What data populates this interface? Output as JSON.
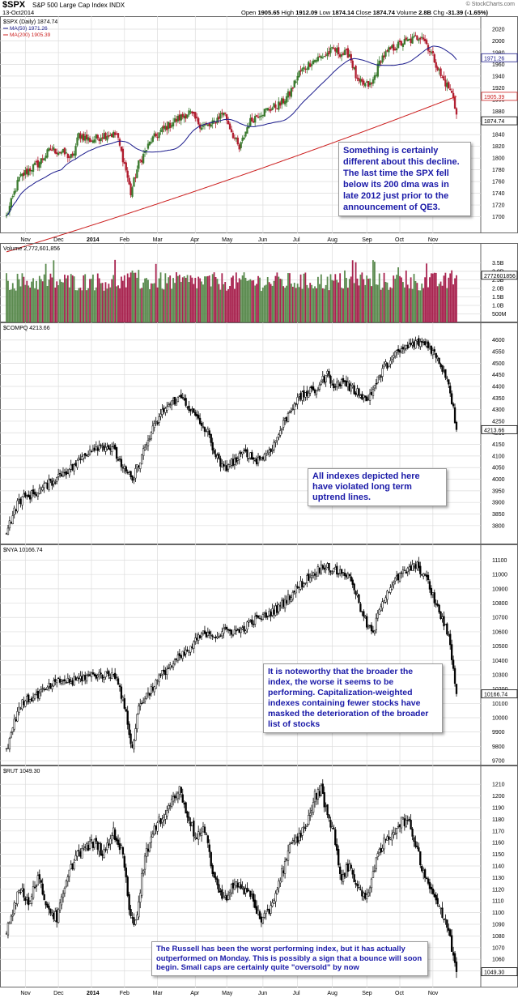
{
  "header": {
    "symbol": "$SPX",
    "name": "S&P 500 Large Cap Index INDX",
    "date": "13-Oct2014",
    "open_label": "Open",
    "open": "1905.65",
    "high_label": "High",
    "high": "1912.09",
    "low_label": "Low",
    "low": "1874.14",
    "close_label": "Close",
    "close": "1874.74",
    "vol_label": "Volume",
    "vol": "2.8B",
    "chg_label": "Chg",
    "chg": "-31.39 (-1.65%)",
    "source": "© StockCharts.com"
  },
  "colors": {
    "up": "#3a7a2e",
    "down": "#b01c2e",
    "ma50": "#1a1a8c",
    "ma200": "#cc1f1f",
    "grid": "#dcdcdc",
    "vol_up": "#5a8a4e",
    "vol_down": "#a8234f",
    "note_text": "#1a1aa8"
  },
  "chart_data": [
    {
      "type": "candlestick",
      "id": "spx",
      "title": "$SPX (Daily) 1874.74",
      "legend": [
        "MA(50) 1971.26",
        "MA(200) 1905.39"
      ],
      "ylim": [
        1680,
        2020
      ],
      "yticks": [
        1700,
        1720,
        1740,
        1760,
        1780,
        1800,
        1820,
        1840,
        1860,
        1880,
        1900,
        1920,
        1940,
        1960,
        1980,
        2000,
        2020
      ],
      "price_tags": [
        "1971.26",
        "1905.39",
        "1874.74"
      ],
      "anchors": [
        [
          0,
          1700
        ],
        [
          8,
          1765
        ],
        [
          14,
          1780
        ],
        [
          20,
          1790
        ],
        [
          28,
          1815
        ],
        [
          35,
          1810
        ],
        [
          42,
          1800
        ],
        [
          46,
          1840
        ],
        [
          54,
          1830
        ],
        [
          62,
          1840
        ],
        [
          70,
          1840
        ],
        [
          76,
          1780
        ],
        [
          79,
          1740
        ],
        [
          84,
          1790
        ],
        [
          92,
          1830
        ],
        [
          100,
          1850
        ],
        [
          108,
          1865
        ],
        [
          116,
          1878
        ],
        [
          124,
          1855
        ],
        [
          130,
          1855
        ],
        [
          138,
          1880
        ],
        [
          144,
          1840
        ],
        [
          148,
          1815
        ],
        [
          154,
          1860
        ],
        [
          160,
          1875
        ],
        [
          168,
          1885
        ],
        [
          174,
          1892
        ],
        [
          180,
          1910
        ],
        [
          186,
          1945
        ],
        [
          194,
          1965
        ],
        [
          202,
          1975
        ],
        [
          208,
          1985
        ],
        [
          213,
          1978
        ],
        [
          218,
          1978
        ],
        [
          223,
          1930
        ],
        [
          228,
          1925
        ],
        [
          232,
          1925
        ],
        [
          238,
          1970
        ],
        [
          244,
          1985
        ],
        [
          252,
          1997
        ],
        [
          258,
          2002
        ],
        [
          264,
          2010
        ],
        [
          267,
          1995
        ],
        [
          272,
          1968
        ],
        [
          276,
          1940
        ],
        [
          281,
          1920
        ],
        [
          284,
          1905
        ],
        [
          286,
          1874.74
        ]
      ],
      "ma50_endpoints": [
        [
          0,
          1690
        ],
        [
          286,
          1971.26
        ]
      ],
      "ma200_endpoints": [
        [
          0,
          1640
        ],
        [
          286,
          1905.39
        ]
      ],
      "note": "Something is certainly different about this decline. The last time the SPX fell below its 200 dma was in late 2012 just prior to the announcement of QE3."
    },
    {
      "type": "bar",
      "id": "volume",
      "title": "Volume 2,772,601,856",
      "ylim": [
        0,
        4000000000
      ],
      "yticks": [
        "500M",
        "1.0B",
        "1.5B",
        "2.0B",
        "2.5B",
        "3.0B",
        "3.5B"
      ],
      "yticks_values": [
        500000000,
        1000000000,
        1500000000,
        2000000000,
        2500000000,
        3000000000,
        3500000000
      ],
      "last_tag": "2772601856",
      "last_value": 2772601856
    },
    {
      "type": "candlestick",
      "id": "compq",
      "title": "$COMPQ 4213.66",
      "ylim": [
        3740,
        4620
      ],
      "yticks": [
        3800,
        3850,
        3900,
        3950,
        4000,
        4050,
        4100,
        4150,
        4200,
        4250,
        4300,
        4350,
        4400,
        4450,
        4500,
        4550,
        4600
      ],
      "price_tags": [
        "4213.66"
      ],
      "anchors": [
        [
          0,
          3780
        ],
        [
          8,
          3910
        ],
        [
          18,
          3940
        ],
        [
          28,
          3985
        ],
        [
          35,
          4025
        ],
        [
          42,
          4050
        ],
        [
          50,
          4110
        ],
        [
          56,
          4140
        ],
        [
          63,
          4145
        ],
        [
          68,
          4125
        ],
        [
          75,
          4040
        ],
        [
          80,
          3990
        ],
        [
          84,
          4070
        ],
        [
          92,
          4200
        ],
        [
          100,
          4300
        ],
        [
          107,
          4340
        ],
        [
          112,
          4350
        ],
        [
          117,
          4300
        ],
        [
          123,
          4240
        ],
        [
          128,
          4200
        ],
        [
          133,
          4100
        ],
        [
          138,
          4040
        ],
        [
          142,
          4070
        ],
        [
          146,
          4080
        ],
        [
          152,
          4120
        ],
        [
          158,
          4080
        ],
        [
          164,
          4100
        ],
        [
          170,
          4150
        ],
        [
          176,
          4240
        ],
        [
          183,
          4330
        ],
        [
          190,
          4370
        ],
        [
          196,
          4380
        ],
        [
          200,
          4420
        ],
        [
          204,
          4450
        ],
        [
          209,
          4400
        ],
        [
          214,
          4425
        ],
        [
          219,
          4390
        ],
        [
          225,
          4370
        ],
        [
          229,
          4340
        ],
        [
          234,
          4400
        ],
        [
          240,
          4480
        ],
        [
          246,
          4530
        ],
        [
          252,
          4560
        ],
        [
          258,
          4580
        ],
        [
          263,
          4590
        ],
        [
          268,
          4580
        ],
        [
          272,
          4540
        ],
        [
          277,
          4480
        ],
        [
          281,
          4420
        ],
        [
          284,
          4300
        ],
        [
          286,
          4213.66
        ]
      ],
      "note": "All indexes depicted here have violated long term uptrend lines."
    },
    {
      "type": "candlestick",
      "id": "nya",
      "title": "$NYA 10166.74",
      "ylim": [
        9700,
        11120
      ],
      "yticks": [
        9700,
        9800,
        9900,
        10000,
        10100,
        10200,
        10300,
        10400,
        10500,
        10600,
        10700,
        10800,
        10900,
        11000,
        11100
      ],
      "price_tags": [
        "10166.74"
      ],
      "anchors": [
        [
          0,
          9780
        ],
        [
          8,
          10080
        ],
        [
          14,
          10130
        ],
        [
          20,
          10160
        ],
        [
          28,
          10220
        ],
        [
          35,
          10260
        ],
        [
          42,
          10250
        ],
        [
          48,
          10280
        ],
        [
          56,
          10300
        ],
        [
          62,
          10300
        ],
        [
          70,
          10300
        ],
        [
          76,
          10020
        ],
        [
          80,
          9780
        ],
        [
          84,
          10080
        ],
        [
          92,
          10200
        ],
        [
          100,
          10320
        ],
        [
          108,
          10400
        ],
        [
          116,
          10470
        ],
        [
          122,
          10560
        ],
        [
          128,
          10600
        ],
        [
          134,
          10570
        ],
        [
          140,
          10610
        ],
        [
          148,
          10600
        ],
        [
          156,
          10670
        ],
        [
          164,
          10710
        ],
        [
          172,
          10760
        ],
        [
          180,
          10850
        ],
        [
          186,
          10920
        ],
        [
          192,
          10980
        ],
        [
          198,
          11030
        ],
        [
          203,
          11070
        ],
        [
          208,
          11020
        ],
        [
          214,
          11020
        ],
        [
          220,
          10950
        ],
        [
          225,
          10760
        ],
        [
          229,
          10650
        ],
        [
          233,
          10580
        ],
        [
          238,
          10800
        ],
        [
          244,
          10920
        ],
        [
          250,
          10990
        ],
        [
          256,
          11040
        ],
        [
          261,
          11060
        ],
        [
          266,
          10990
        ],
        [
          270,
          10880
        ],
        [
          274,
          10760
        ],
        [
          278,
          10660
        ],
        [
          282,
          10520
        ],
        [
          284,
          10330
        ],
        [
          286,
          10166.74
        ]
      ],
      "note": "It is noteworthy that the broader the index, the worse it seems to be performing. Capitalization-weighted indexes containing fewer stocks have masked the deterioration of the broader list of stocks"
    },
    {
      "type": "candlestick",
      "id": "rut",
      "title": "$RUT 1049.30",
      "ylim": [
        1040,
        1215
      ],
      "yticks": [
        1050,
        1060,
        1070,
        1080,
        1090,
        1100,
        1110,
        1120,
        1130,
        1140,
        1150,
        1160,
        1170,
        1180,
        1190,
        1200,
        1210
      ],
      "price_tags": [
        "1049.30"
      ],
      "anchors": [
        [
          0,
          1085
        ],
        [
          8,
          1120
        ],
        [
          14,
          1110
        ],
        [
          20,
          1130
        ],
        [
          26,
          1105
        ],
        [
          32,
          1095
        ],
        [
          38,
          1125
        ],
        [
          44,
          1150
        ],
        [
          50,
          1155
        ],
        [
          56,
          1160
        ],
        [
          62,
          1150
        ],
        [
          68,
          1170
        ],
        [
          74,
          1150
        ],
        [
          78,
          1105
        ],
        [
          82,
          1090
        ],
        [
          88,
          1150
        ],
        [
          94,
          1170
        ],
        [
          100,
          1185
        ],
        [
          106,
          1198
        ],
        [
          110,
          1205
        ],
        [
          115,
          1185
        ],
        [
          120,
          1165
        ],
        [
          126,
          1170
        ],
        [
          132,
          1130
        ],
        [
          138,
          1110
        ],
        [
          144,
          1125
        ],
        [
          150,
          1120
        ],
        [
          156,
          1115
        ],
        [
          162,
          1090
        ],
        [
          168,
          1105
        ],
        [
          174,
          1130
        ],
        [
          180,
          1155
        ],
        [
          186,
          1165
        ],
        [
          192,
          1180
        ],
        [
          196,
          1200
        ],
        [
          200,
          1205
        ],
        [
          204,
          1185
        ],
        [
          208,
          1170
        ],
        [
          212,
          1130
        ],
        [
          218,
          1140
        ],
        [
          224,
          1120
        ],
        [
          228,
          1110
        ],
        [
          234,
          1140
        ],
        [
          240,
          1160
        ],
        [
          246,
          1170
        ],
        [
          252,
          1180
        ],
        [
          256,
          1175
        ],
        [
          260,
          1160
        ],
        [
          264,
          1140
        ],
        [
          268,
          1125
        ],
        [
          272,
          1115
        ],
        [
          276,
          1100
        ],
        [
          280,
          1090
        ],
        [
          283,
          1070
        ],
        [
          286,
          1049.3
        ]
      ],
      "note": "The Russell has been the worst performing index, but it has actually outperformed on Monday. This is possibly a sign that a bounce will soon begin. Small caps are certainly quite \"oversold\" by now"
    }
  ],
  "x_axis": {
    "labels": [
      "Nov",
      "Dec",
      "2014",
      "Feb",
      "Mar",
      "Apr",
      "May",
      "Jun",
      "Jul",
      "Aug",
      "Sep",
      "Oct",
      "Nov"
    ],
    "label_bars": [
      12,
      33,
      54,
      75,
      96,
      120,
      140,
      163,
      185,
      207,
      229,
      250,
      271
    ]
  }
}
